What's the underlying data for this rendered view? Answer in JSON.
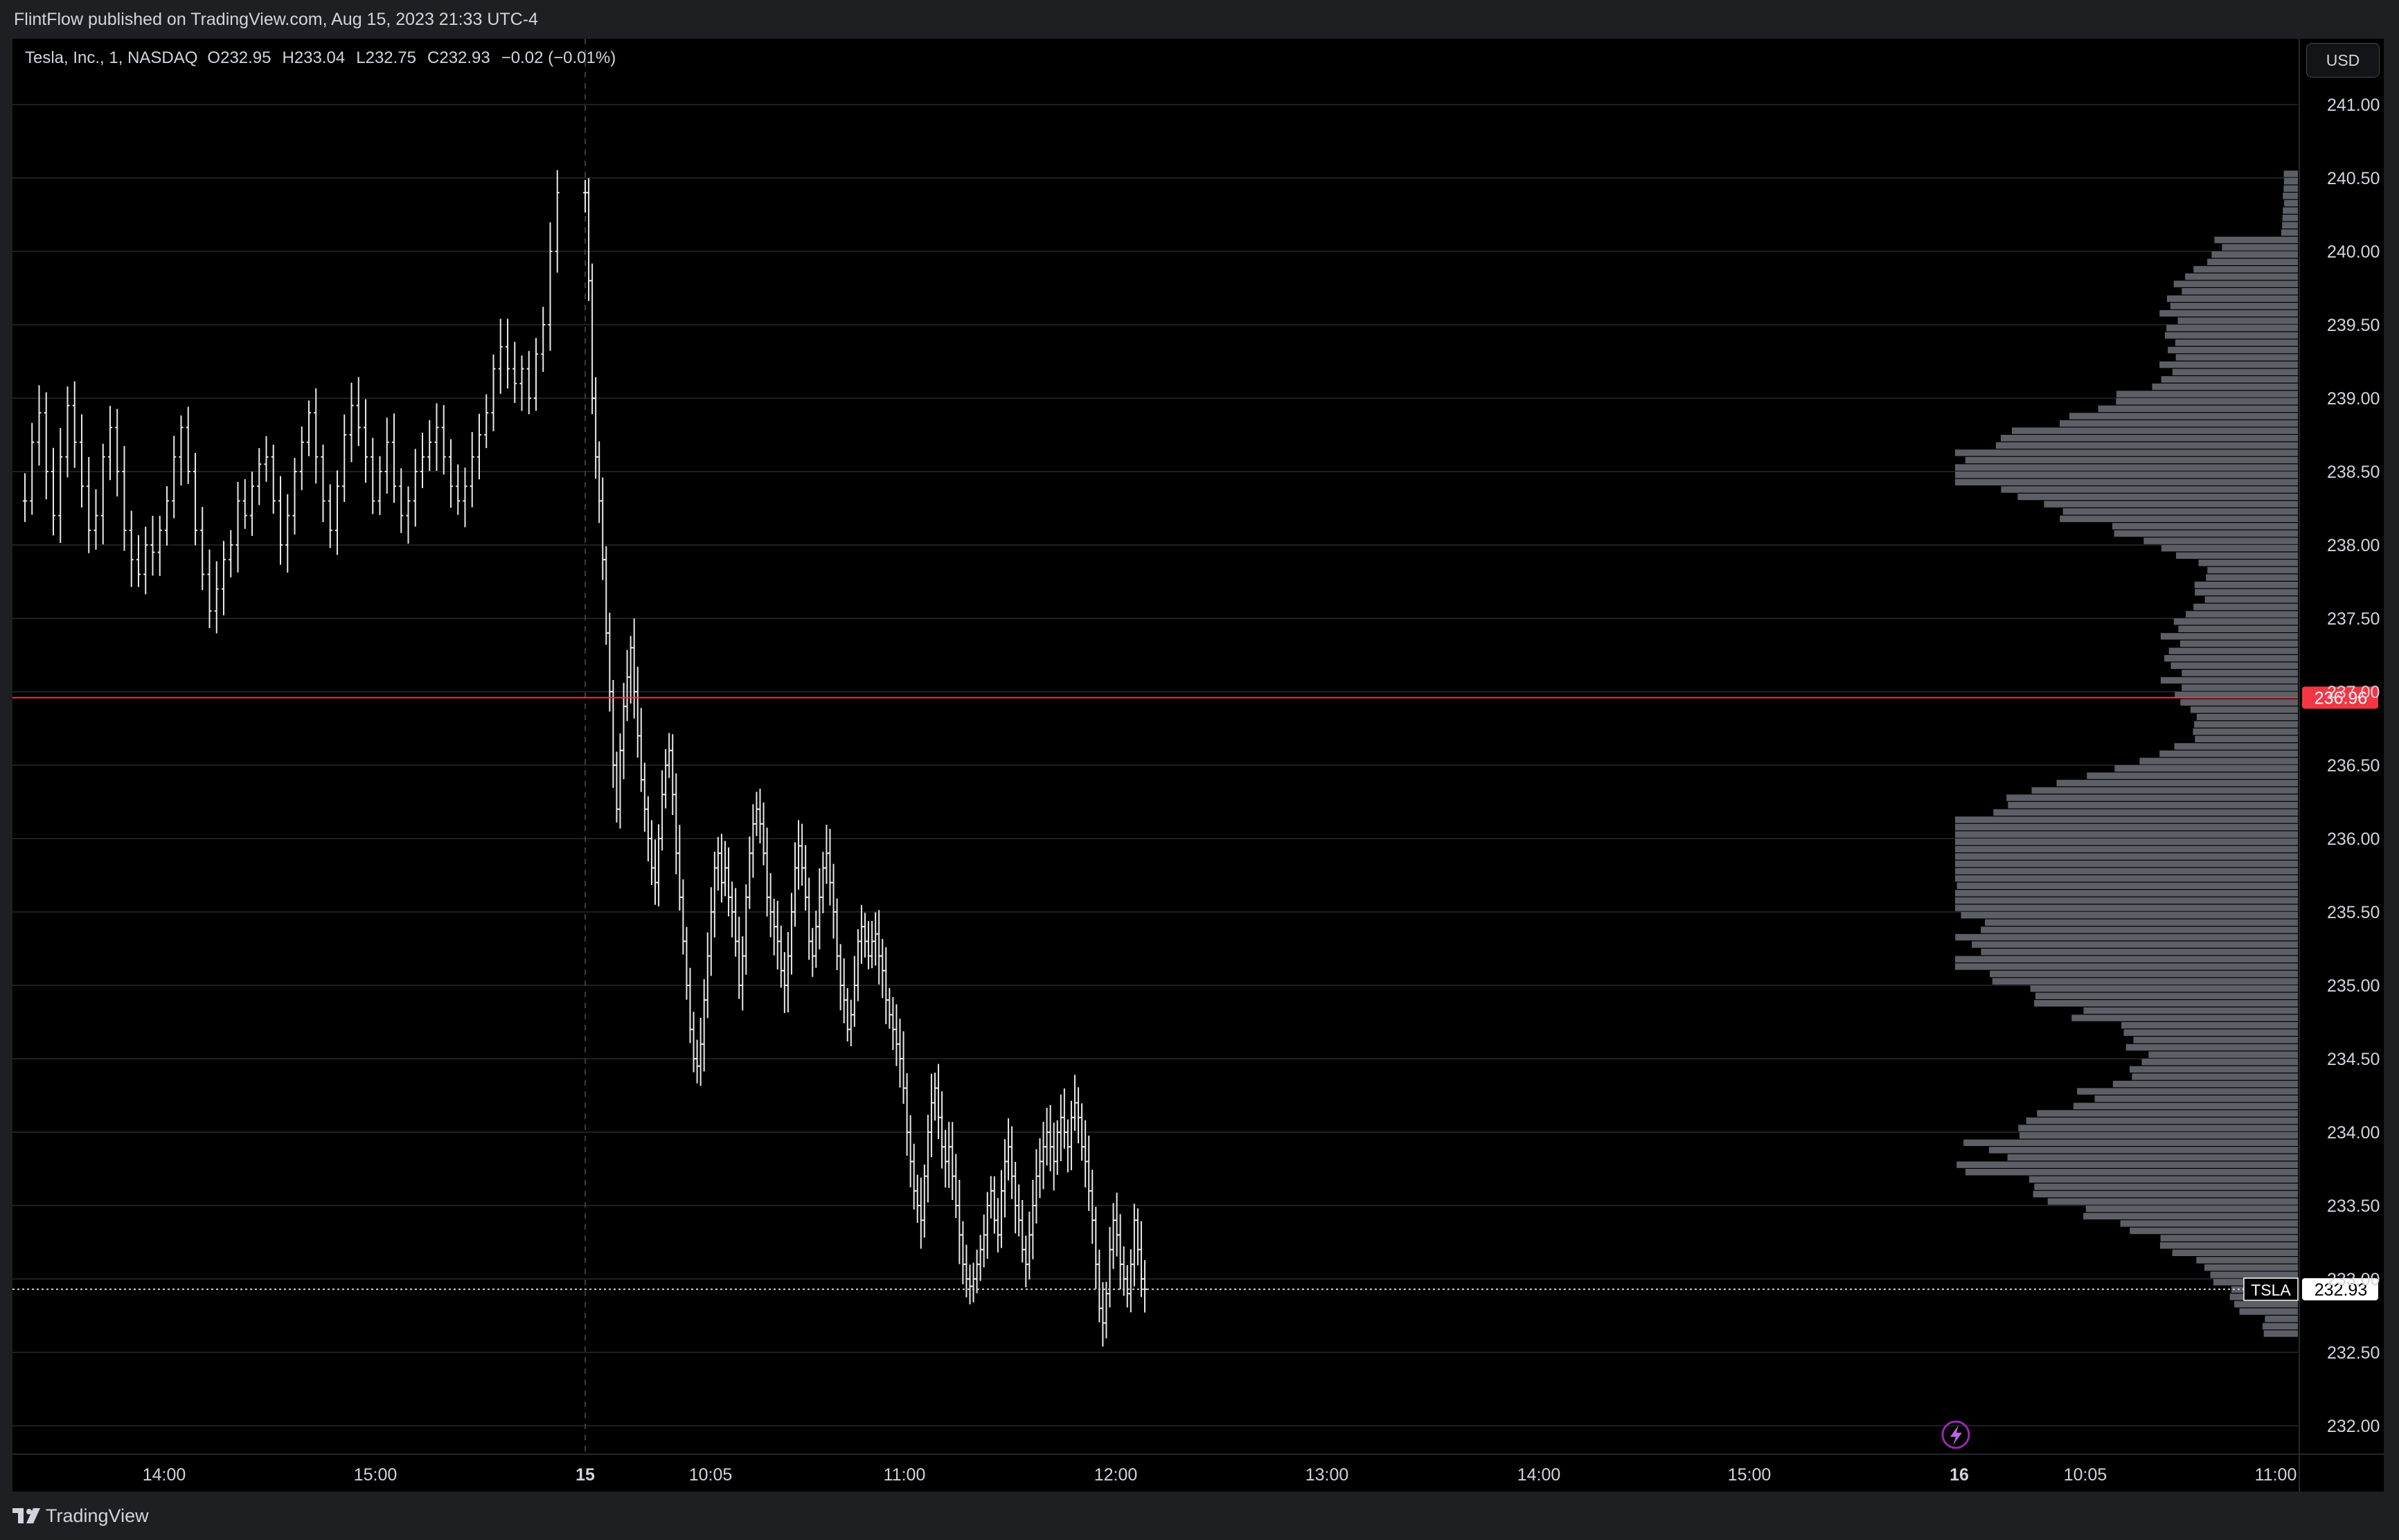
{
  "header": {
    "published": "FlintFlow published on TradingView.com, Aug 15, 2023 21:33 UTC-4"
  },
  "legend": {
    "symbol": "Tesla, Inc., 1, NASDAQ",
    "open": "O232.95",
    "high": "H233.04",
    "low": "L232.75",
    "close": "C232.93",
    "change": "−0.02 (−0.01%)"
  },
  "currency_button": "USD",
  "footer": {
    "brand": "TradingView"
  },
  "colors": {
    "background": "#000000",
    "bars": "#e8e8e8",
    "volume_profile": "#5d5f66",
    "red_line": "#f23645",
    "grid": "#1b1c20",
    "axis_text": "#d1d4dc"
  },
  "icons": {
    "alert": "lightning-bolt-icon",
    "logo": "tradingview-logo-icon"
  },
  "chart_data": {
    "type": "ohlc",
    "symbol": "TSLA",
    "interval": "1",
    "y_axis": {
      "range": [
        231.85,
        241.4
      ],
      "ticks": [
        "232.00",
        "232.50",
        "233.00",
        "233.50",
        "234.00",
        "234.50",
        "235.00",
        "235.50",
        "236.00",
        "236.50",
        "237.00",
        "237.50",
        "238.00",
        "238.50",
        "239.00",
        "239.50",
        "240.00",
        "240.50",
        "241.00"
      ]
    },
    "x_axis": {
      "ticks": [
        {
          "label": "14:00",
          "session": 0,
          "time": "14:00"
        },
        {
          "label": "15:00",
          "session": 0,
          "time": "15:00"
        },
        {
          "label": "15",
          "session": 1,
          "time": "09:30",
          "bold": true
        },
        {
          "label": "10:05",
          "session": 1,
          "time": "10:05"
        },
        {
          "label": "11:00",
          "session": 1,
          "time": "11:00"
        },
        {
          "label": "12:00",
          "session": 1,
          "time": "12:00"
        },
        {
          "label": "13:00",
          "session": 1,
          "time": "13:00"
        },
        {
          "label": "14:00",
          "session": 1,
          "time": "14:00"
        },
        {
          "label": "15:00",
          "session": 1,
          "time": "15:00"
        },
        {
          "label": "16",
          "session": 2,
          "time": "09:30",
          "bold": true
        },
        {
          "label": "10:05",
          "session": 2,
          "time": "10:05"
        },
        {
          "label": "11:00",
          "session": 2,
          "time": "11:00"
        }
      ]
    },
    "sessions": [
      {
        "date": "Aug 14",
        "start": "13:31",
        "closes": [
          238.3,
          238.7,
          238.9,
          238.5,
          238.2,
          238.6,
          238.95,
          238.7,
          238.4,
          238.1,
          238.2,
          238.6,
          238.8,
          238.5,
          238.1,
          237.9,
          237.8,
          238.0,
          237.95,
          238.1,
          238.3,
          238.6,
          238.8,
          238.5,
          238.1,
          237.8,
          237.55,
          237.7,
          237.9,
          238.0,
          238.3,
          238.2,
          238.4,
          238.55,
          238.6,
          238.3,
          238.0,
          238.2,
          238.5,
          238.7,
          238.9,
          238.6,
          238.3,
          238.1,
          238.4,
          238.75,
          238.95,
          238.8,
          238.6,
          238.3,
          238.5,
          238.7,
          238.4,
          238.2,
          238.3,
          238.5,
          238.6,
          238.7,
          238.8,
          238.6,
          238.4,
          238.3,
          238.4,
          238.6,
          238.75,
          238.9,
          239.2,
          239.35,
          239.2,
          239.1,
          239.2,
          239.0,
          239.3,
          239.5,
          240.0,
          240.4
        ],
        "max_close": 240.4
      },
      {
        "date": "Aug 15",
        "start": "09:30",
        "closes": [
          240.4,
          239.8,
          239.0,
          238.6,
          238.3,
          237.9,
          237.4,
          237.0,
          236.5,
          236.2,
          236.6,
          236.9,
          237.1,
          237.3,
          237.0,
          236.7,
          236.4,
          236.2,
          236.0,
          235.8,
          235.7,
          236.0,
          236.3,
          236.5,
          236.6,
          236.3,
          235.9,
          235.6,
          235.3,
          235.0,
          234.7,
          234.5,
          234.45,
          234.6,
          234.9,
          235.2,
          235.5,
          235.8,
          235.9,
          235.7,
          235.8,
          235.6,
          235.5,
          235.3,
          235.0,
          235.2,
          235.6,
          235.9,
          236.1,
          236.2,
          236.1,
          235.9,
          235.6,
          235.5,
          235.4,
          235.3,
          235.1,
          235.0,
          235.2,
          235.5,
          235.8,
          235.95,
          235.8,
          235.6,
          235.3,
          235.2,
          235.4,
          235.6,
          235.8,
          235.9,
          235.7,
          235.5,
          235.2,
          235.0,
          234.9,
          234.7,
          234.8,
          235.0,
          235.3,
          235.4,
          235.3,
          235.2,
          235.3,
          235.35,
          235.2,
          235.1,
          234.9,
          234.8,
          234.7,
          234.6,
          234.5,
          234.3,
          234.0,
          233.8,
          233.6,
          233.5,
          233.4,
          233.7,
          234.0,
          234.2,
          234.3,
          234.1,
          233.9,
          233.8,
          233.9,
          233.7,
          233.5,
          233.3,
          233.1,
          233.0,
          232.95,
          233.0,
          233.1,
          233.2,
          233.3,
          233.5,
          233.6,
          233.4,
          233.3,
          233.6,
          233.8,
          233.9,
          233.7,
          233.5,
          233.4,
          233.2,
          233.1,
          233.3,
          233.5,
          233.7,
          233.8,
          233.9,
          234.0,
          233.9,
          233.8,
          234.0,
          234.1,
          234.0,
          233.9,
          234.1,
          234.2,
          234.1,
          233.9,
          233.8,
          233.6,
          233.4,
          233.1,
          232.8,
          232.7,
          232.9,
          233.2,
          233.4,
          233.3,
          233.1,
          233.0,
          232.9,
          233.1,
          233.4,
          233.2,
          233.0,
          232.93
        ],
        "max_close": 240.4
      }
    ],
    "red_line": 236.96,
    "red_line_label": "236.96",
    "last_price": 232.93,
    "last_price_label": "232.93",
    "last_symbol_label": "TSLA",
    "volume_profile": {
      "bin_size": 0.05,
      "price_range": [
        232.6,
        240.5
      ],
      "peaks": [
        {
          "price": 238.5,
          "weight": 1.0,
          "width": 0.45
        },
        {
          "price": 236.0,
          "weight": 0.95,
          "width": 0.45
        },
        {
          "price": 235.2,
          "weight": 0.9,
          "width": 0.55
        },
        {
          "price": 233.8,
          "weight": 0.85,
          "width": 0.55
        },
        {
          "price": 237.2,
          "weight": 0.25,
          "width": 0.5
        },
        {
          "price": 239.5,
          "weight": 0.25,
          "width": 0.5
        }
      ]
    }
  }
}
